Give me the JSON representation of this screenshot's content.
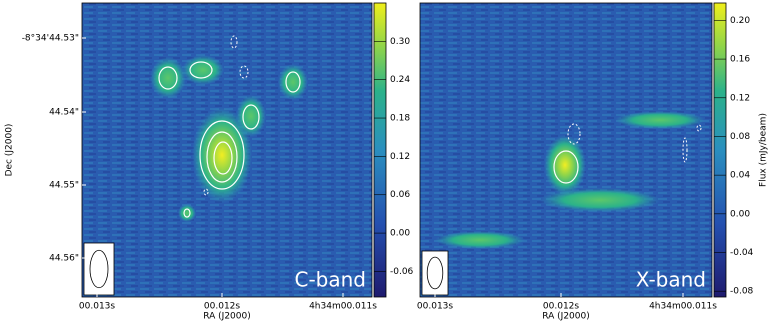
{
  "chart_data": [
    {
      "type": "image",
      "label": "C-band",
      "ylabel": "Dec (J2000)",
      "xlabel": "RA (J2000)",
      "xtick_labels": [
        "00.013s",
        "00.012s",
        "4h34m00.011s"
      ],
      "ytick_labels": [
        "-8°34'44.53\"",
        "44.54\"",
        "44.55\"",
        "44.56\""
      ],
      "colorbar": {
        "ylim": [
          -0.1,
          0.36
        ],
        "yticks": [
          {
            "value": 0.3,
            "label": "0.30"
          },
          0.24,
          0.18,
          0.12,
          0.06,
          {
            "value": 0,
            "label": "0.00"
          },
          -0.06
        ]
      }
    },
    {
      "type": "image",
      "label": "X-band",
      "xlabel": "RA (J2000)",
      "xtick_labels": [
        "00.013s",
        "00.012s",
        "4h34m00.011s"
      ],
      "colorbar": {
        "label": "Flux (mJy/beam)",
        "ylim": [
          -0.086,
          0.218
        ],
        "yticks": [
          {
            "value": 0.2,
            "label": "0.20"
          },
          0.16,
          0.12,
          0.08,
          0.04,
          {
            "value": 0,
            "label": "0.00"
          },
          -0.04,
          -0.08
        ]
      }
    }
  ]
}
